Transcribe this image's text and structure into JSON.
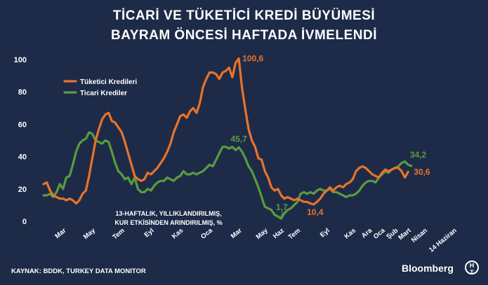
{
  "title_line1": "TİCARİ VE TÜKETİCİ KREDİ BÜYÜMESİ",
  "title_line2": "BAYRAM ÖNCESİ HAFTADA İVMELENDİ",
  "note_line1": "13-HAFTALIK, YILLIKLANDIRILMIŞ,",
  "note_line2": "KUR ETKİSİNDEN ARINDIRILMIŞ, %",
  "source": "KAYNAK: BDDK, TURKEY DATA MONITOR",
  "brand": "Bloomberg",
  "chart_data": {
    "type": "line",
    "ylim": [
      0,
      100
    ],
    "yticks": [
      0,
      20,
      40,
      60,
      80,
      100
    ],
    "xlim": [
      0,
      129
    ],
    "xtick_labels": [
      {
        "label": "Mar",
        "x": 7
      },
      {
        "label": "May",
        "x": 16
      },
      {
        "label": "Tem",
        "x": 25
      },
      {
        "label": "Eyl",
        "x": 34
      },
      {
        "label": "Kas",
        "x": 43
      },
      {
        "label": "Oca",
        "x": 52
      },
      {
        "label": "Mar",
        "x": 61
      },
      {
        "label": "May",
        "x": 69
      },
      {
        "label": "Haz",
        "x": 74
      },
      {
        "label": "Tem",
        "x": 79
      },
      {
        "label": "Eyl",
        "x": 88
      },
      {
        "label": "Kas",
        "x": 96
      },
      {
        "label": "Ara",
        "x": 101
      },
      {
        "label": "Oca",
        "x": 105
      },
      {
        "label": "Şub",
        "x": 109
      },
      {
        "label": "Mart",
        "x": 113
      },
      {
        "label": "Nisan",
        "x": 118
      },
      {
        "label": "14 Haziran",
        "x": 127
      }
    ],
    "series": [
      {
        "name": "Tüketici Kredileri",
        "color": "#e8732a",
        "values": [
          23,
          24,
          19,
          16,
          15,
          14,
          14,
          13,
          14,
          13,
          11,
          13,
          17,
          19,
          28,
          39,
          50,
          57,
          63,
          66,
          67,
          62,
          61,
          58,
          55,
          49,
          42,
          35,
          28,
          26,
          25,
          26,
          30,
          29,
          31,
          33,
          36,
          39,
          43,
          48,
          55,
          60,
          65,
          66,
          64,
          68,
          70,
          67,
          73,
          83,
          88,
          92,
          92,
          91,
          88,
          92,
          93,
          95,
          89,
          98,
          100.6,
          82,
          69,
          57,
          50,
          46,
          39,
          38,
          31,
          27,
          21,
          19,
          20,
          16,
          14,
          15,
          14,
          13,
          14,
          13,
          12,
          12,
          11,
          10.4,
          12,
          14,
          17,
          19,
          21,
          19,
          21,
          22,
          21,
          23,
          24,
          26,
          31,
          33,
          34,
          33,
          31,
          29,
          28,
          27,
          30,
          32,
          31,
          32,
          33,
          33,
          31,
          27,
          30.6
        ],
        "end_label": "30,6",
        "peak_label": "100,6",
        "trough_label": "10,4"
      },
      {
        "name": "Ticari Krediler",
        "color": "#5b9b3f",
        "values": [
          16,
          16,
          17,
          15,
          18,
          23,
          20,
          27,
          28,
          35,
          43,
          48,
          50,
          51,
          55,
          54,
          50,
          49,
          48,
          50,
          49,
          43,
          36,
          31,
          29,
          26,
          27,
          23,
          27,
          20,
          18,
          18,
          20,
          19,
          22,
          24,
          25,
          25,
          27,
          26,
          25,
          27,
          28,
          31,
          29,
          29,
          30,
          29,
          30,
          31,
          33,
          35,
          34,
          38,
          42,
          46,
          46,
          45,
          46,
          44,
          45.7,
          43,
          39,
          34,
          31,
          26,
          21,
          15,
          9,
          8,
          7,
          4,
          3,
          1.7,
          5,
          7,
          8,
          10,
          12,
          17,
          18,
          17,
          18,
          17,
          19,
          20,
          19,
          19,
          20,
          18,
          18,
          17,
          16,
          15,
          16,
          16,
          17,
          19,
          22,
          24,
          25,
          25,
          24,
          27,
          29,
          31,
          30,
          32,
          33,
          34,
          36,
          37,
          35,
          34.2
        ],
        "end_label": "34,2",
        "peak_label": "45,7",
        "trough_label": "1,7"
      }
    ]
  }
}
